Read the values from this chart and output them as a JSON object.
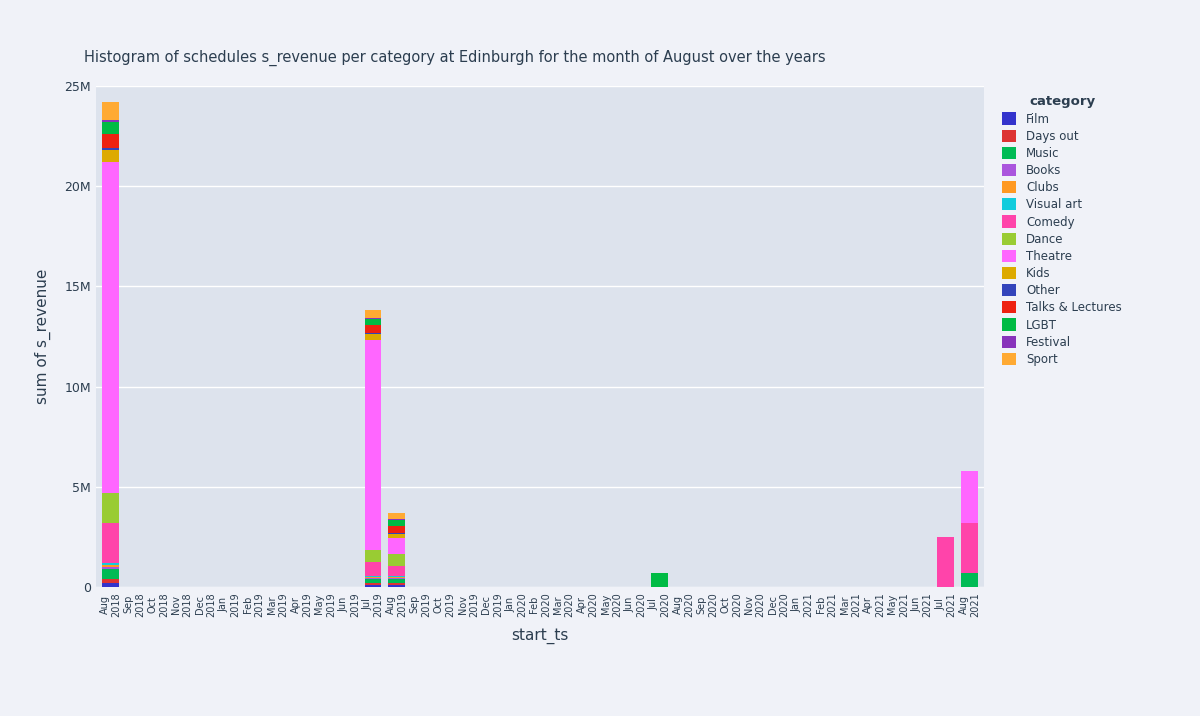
{
  "title": "Histogram of schedules s_revenue per category at Edinburgh for the month of August over the years",
  "xlabel": "start_ts",
  "ylabel": "sum of s_revenue",
  "background_color": "#dde3ed",
  "fig_background": "#f0f2f8",
  "categories": [
    "Film",
    "Days out",
    "Music",
    "Books",
    "Clubs",
    "Visual art",
    "Comedy",
    "Dance",
    "Theatre",
    "Kids",
    "Other",
    "Talks & Lectures",
    "LGBT",
    "Festival",
    "Sport"
  ],
  "colors": [
    "#3333cc",
    "#dd3333",
    "#00bb55",
    "#aa55dd",
    "#ff9922",
    "#11ccdd",
    "#ff44aa",
    "#99cc33",
    "#ff66ff",
    "#ddaa00",
    "#3344bb",
    "#ee2211",
    "#00bb44",
    "#8833bb",
    "#ffaa33"
  ],
  "months": [
    "Aug\n2018",
    "Sep\n2018",
    "Oct\n2018",
    "Nov\n2018",
    "Dec\n2018",
    "Jan\n2019",
    "Feb\n2019",
    "Mar\n2019",
    "Apr\n2019",
    "May\n2019",
    "Jun\n2019",
    "Jul\n2019",
    "Aug\n2019",
    "Sep\n2019",
    "Oct\n2019",
    "Nov\n2019",
    "Dec\n2019",
    "Jan\n2020",
    "Feb\n2020",
    "Mar\n2020",
    "Apr\n2020",
    "May\n2020",
    "Jun\n2020",
    "Jul\n2020",
    "Aug\n2020",
    "Sep\n2020",
    "Oct\n2020",
    "Nov\n2020",
    "Dec\n2020",
    "Jan\n2021",
    "Feb\n2021",
    "Mar\n2021",
    "Apr\n2021",
    "May\n2021",
    "Jun\n2021",
    "Jul\n2021",
    "Aug\n2021"
  ],
  "data": {
    "Film": [
      200000,
      0,
      0,
      0,
      0,
      0,
      0,
      0,
      0,
      0,
      0,
      100000,
      100000,
      0,
      0,
      0,
      0,
      0,
      0,
      0,
      0,
      0,
      0,
      0,
      0,
      0,
      0,
      0,
      0,
      0,
      0,
      0,
      0,
      0,
      0,
      0,
      0
    ],
    "Days out": [
      200000,
      0,
      0,
      0,
      0,
      0,
      0,
      0,
      0,
      0,
      0,
      100000,
      100000,
      0,
      0,
      0,
      0,
      0,
      0,
      0,
      0,
      0,
      0,
      0,
      0,
      0,
      0,
      0,
      0,
      0,
      0,
      0,
      0,
      0,
      0,
      0,
      0
    ],
    "Music": [
      500000,
      0,
      0,
      0,
      0,
      0,
      0,
      0,
      0,
      0,
      0,
      200000,
      200000,
      0,
      0,
      0,
      0,
      0,
      0,
      0,
      0,
      0,
      0,
      0,
      0,
      0,
      0,
      0,
      0,
      0,
      0,
      0,
      0,
      0,
      0,
      0,
      700000
    ],
    "Books": [
      100000,
      0,
      0,
      0,
      0,
      0,
      0,
      0,
      0,
      0,
      0,
      50000,
      50000,
      0,
      0,
      0,
      0,
      0,
      0,
      0,
      0,
      0,
      0,
      0,
      0,
      0,
      0,
      0,
      0,
      0,
      0,
      0,
      0,
      0,
      0,
      0,
      0
    ],
    "Clubs": [
      100000,
      0,
      0,
      0,
      0,
      0,
      0,
      0,
      0,
      0,
      0,
      50000,
      50000,
      0,
      0,
      0,
      0,
      0,
      0,
      0,
      0,
      0,
      0,
      0,
      0,
      0,
      0,
      0,
      0,
      0,
      0,
      0,
      0,
      0,
      0,
      0,
      0
    ],
    "Visual art": [
      100000,
      0,
      0,
      0,
      0,
      0,
      0,
      0,
      0,
      0,
      0,
      50000,
      50000,
      0,
      0,
      0,
      0,
      0,
      0,
      0,
      0,
      0,
      0,
      0,
      0,
      0,
      0,
      0,
      0,
      0,
      0,
      0,
      0,
      0,
      0,
      0,
      0
    ],
    "Comedy": [
      2000000,
      0,
      0,
      0,
      0,
      0,
      0,
      0,
      0,
      0,
      0,
      700000,
      500000,
      0,
      0,
      0,
      0,
      0,
      0,
      0,
      0,
      0,
      0,
      0,
      0,
      0,
      0,
      0,
      0,
      0,
      0,
      0,
      0,
      0,
      0,
      2500000,
      2500000
    ],
    "Dance": [
      1500000,
      0,
      0,
      0,
      0,
      0,
      0,
      0,
      0,
      0,
      0,
      600000,
      600000,
      0,
      0,
      0,
      0,
      0,
      0,
      0,
      0,
      0,
      0,
      0,
      0,
      0,
      0,
      0,
      0,
      0,
      0,
      0,
      0,
      0,
      0,
      0,
      0
    ],
    "Theatre": [
      16500000,
      0,
      0,
      0,
      0,
      0,
      0,
      0,
      0,
      0,
      0,
      10500000,
      800000,
      0,
      0,
      0,
      0,
      0,
      0,
      0,
      0,
      0,
      0,
      0,
      0,
      0,
      0,
      0,
      0,
      0,
      0,
      0,
      0,
      0,
      0,
      0,
      2600000
    ],
    "Kids": [
      600000,
      0,
      0,
      0,
      0,
      0,
      0,
      0,
      0,
      0,
      0,
      300000,
      200000,
      0,
      0,
      0,
      0,
      0,
      0,
      0,
      0,
      0,
      0,
      0,
      0,
      0,
      0,
      0,
      0,
      0,
      0,
      0,
      0,
      0,
      0,
      0,
      0
    ],
    "Other": [
      100000,
      0,
      0,
      0,
      0,
      0,
      0,
      0,
      0,
      0,
      0,
      50000,
      50000,
      0,
      0,
      0,
      0,
      0,
      0,
      0,
      0,
      0,
      0,
      0,
      0,
      0,
      0,
      0,
      0,
      0,
      0,
      0,
      0,
      0,
      0,
      0,
      0
    ],
    "Talks & Lectures": [
      700000,
      0,
      0,
      0,
      0,
      0,
      0,
      0,
      0,
      0,
      0,
      350000,
      350000,
      0,
      0,
      0,
      0,
      0,
      0,
      0,
      0,
      0,
      0,
      0,
      0,
      0,
      0,
      0,
      0,
      0,
      0,
      0,
      0,
      0,
      0,
      0,
      0
    ],
    "LGBT": [
      600000,
      0,
      0,
      0,
      0,
      0,
      0,
      0,
      0,
      0,
      0,
      300000,
      300000,
      0,
      0,
      0,
      0,
      0,
      0,
      0,
      0,
      0,
      0,
      700000,
      0,
      0,
      0,
      0,
      0,
      0,
      0,
      0,
      0,
      0,
      0,
      0,
      0
    ],
    "Festival": [
      100000,
      0,
      0,
      0,
      0,
      0,
      0,
      0,
      0,
      0,
      0,
      50000,
      50000,
      0,
      0,
      0,
      0,
      0,
      0,
      0,
      0,
      0,
      0,
      0,
      0,
      0,
      0,
      0,
      0,
      0,
      0,
      0,
      0,
      0,
      0,
      0,
      0
    ],
    "Sport": [
      900000,
      0,
      0,
      0,
      0,
      0,
      0,
      0,
      0,
      0,
      0,
      400000,
      300000,
      0,
      0,
      0,
      0,
      0,
      0,
      0,
      0,
      0,
      0,
      0,
      0,
      0,
      0,
      0,
      0,
      0,
      0,
      0,
      0,
      0,
      0,
      0,
      0
    ]
  },
  "ylim": [
    0,
    25000000
  ],
  "yticks": [
    0,
    5000000,
    10000000,
    15000000,
    20000000,
    25000000
  ],
  "ytick_labels": [
    "0",
    "5M",
    "10M",
    "15M",
    "20M",
    "25M"
  ]
}
